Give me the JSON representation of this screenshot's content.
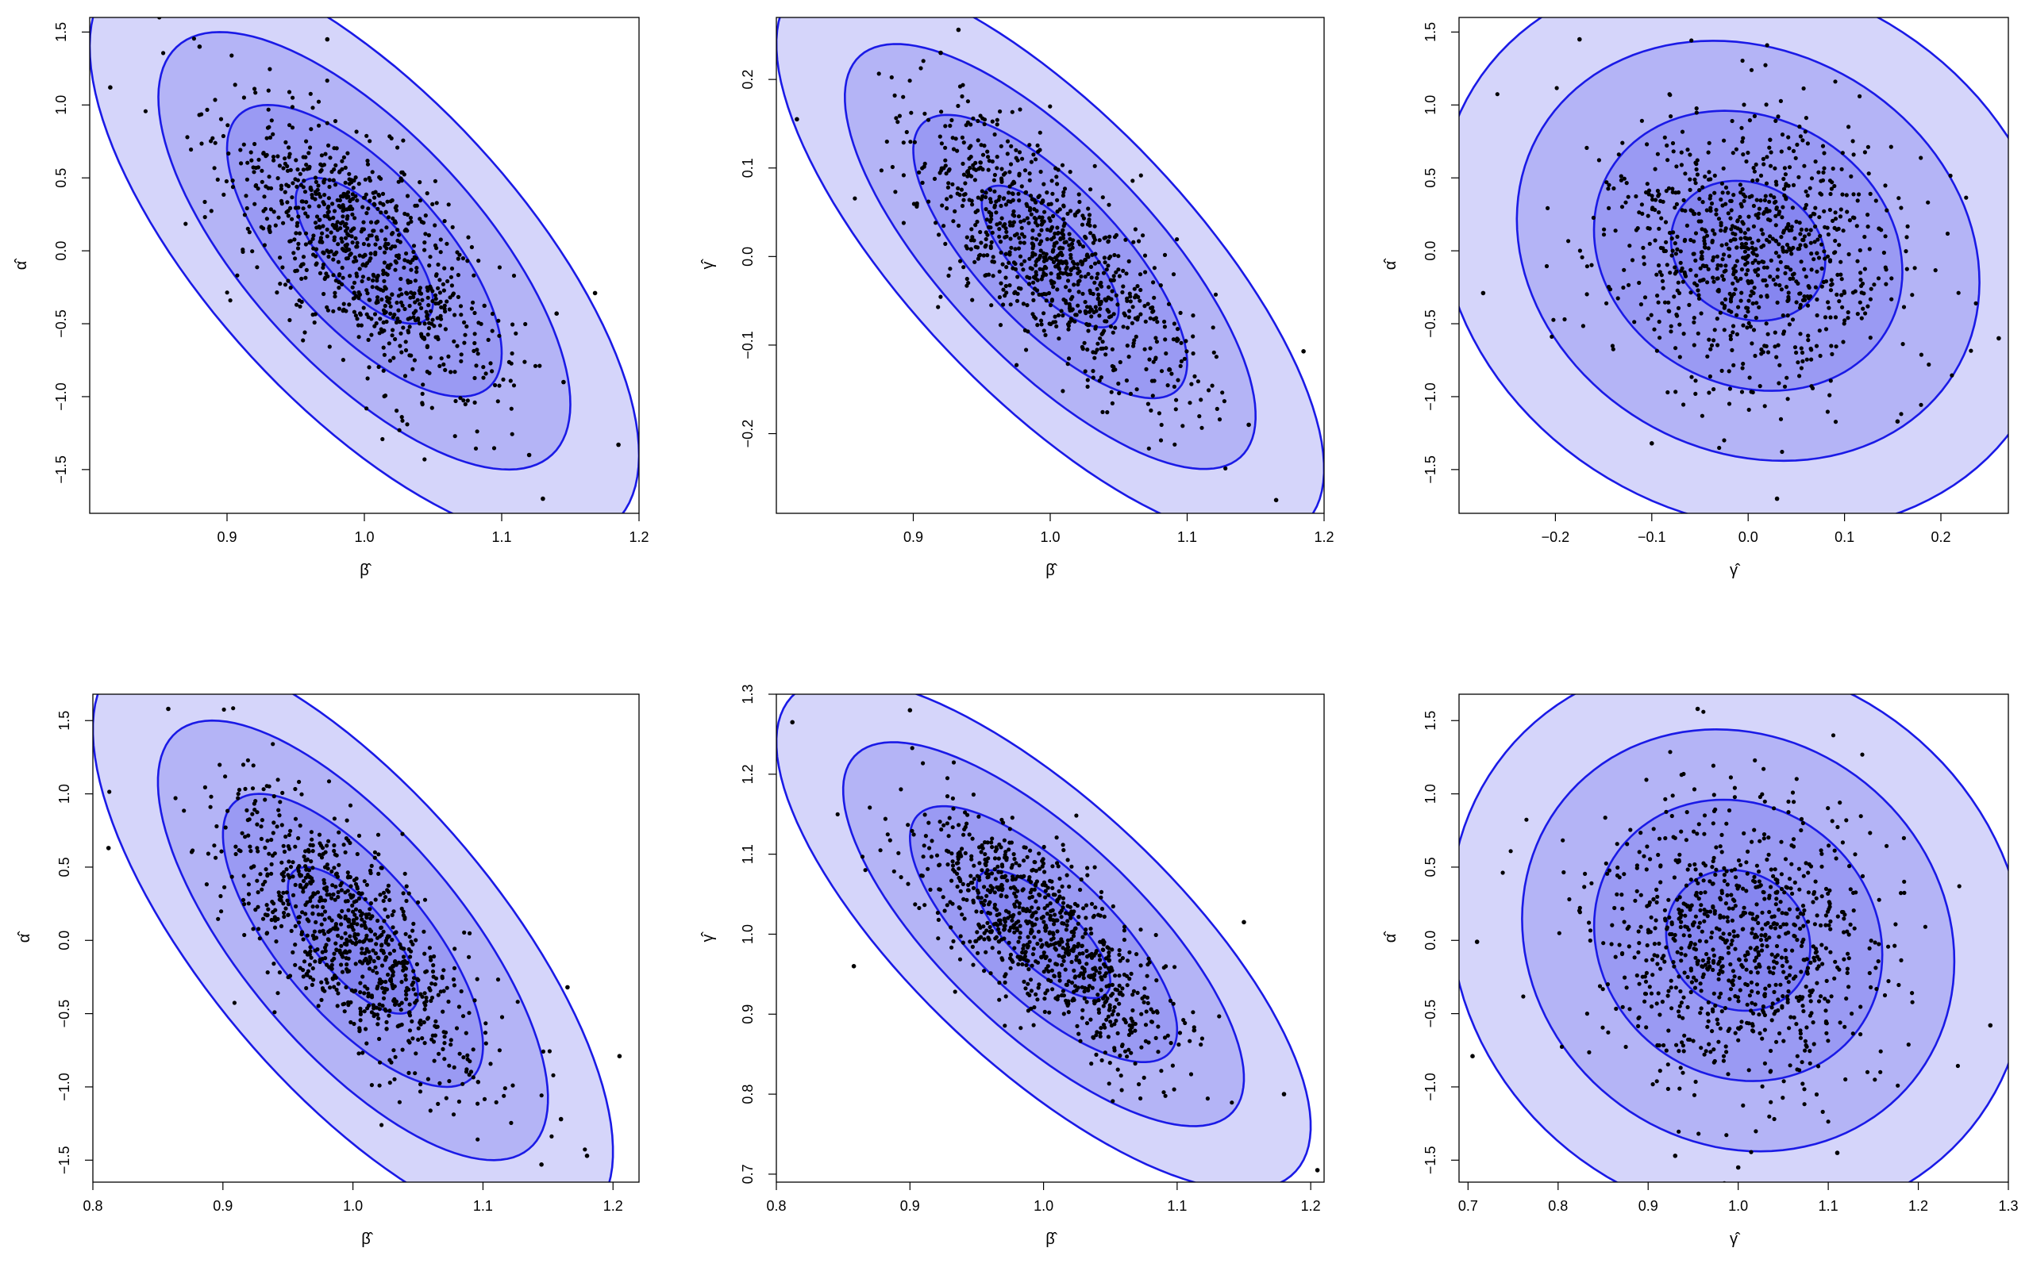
{
  "chart_data": [
    {
      "type": "scatter",
      "xlabel": "β̂",
      "ylabel": "α̂",
      "xlim": [
        0.8,
        1.2
      ],
      "ylim": [
        -1.8,
        1.6
      ],
      "xticks": [
        0.9,
        1.0,
        1.1,
        1.2
      ],
      "xtick_labels": [
        "0.9",
        "1.0",
        "1.1",
        "1.2"
      ],
      "yticks": [
        -1.5,
        -1.0,
        -0.5,
        0.0,
        0.5,
        1.0,
        1.5
      ],
      "ytick_labels": [
        "−1.5",
        "−1.0",
        "−0.5",
        "0.0",
        "0.5",
        "1.0",
        "1.5"
      ],
      "center": [
        1.0,
        0.0
      ],
      "sd": [
        0.05,
        0.5
      ],
      "correlation": -0.7,
      "contour_levels": [
        1,
        2,
        3,
        4
      ],
      "n_points": 900,
      "highlight_points": [
        [
          0.815,
          1.12
        ],
        [
          0.88,
          1.4
        ],
        [
          0.973,
          1.45
        ],
        [
          1.13,
          -1.7
        ],
        [
          1.185,
          -1.33
        ],
        [
          1.12,
          -1.4
        ],
        [
          1.168,
          -0.29
        ],
        [
          1.14,
          -0.43
        ],
        [
          1.145,
          -0.9
        ]
      ],
      "colors": {
        "fill": "#4040e8",
        "line": "#1a1ae6",
        "points": "#000000"
      }
    },
    {
      "type": "scatter",
      "xlabel": "β̂",
      "ylabel": "γ̂",
      "xlim": [
        0.8,
        1.2
      ],
      "ylim": [
        -0.29,
        0.27
      ],
      "xticks": [
        0.9,
        1.0,
        1.1,
        1.2
      ],
      "xtick_labels": [
        "0.9",
        "1.0",
        "1.1",
        "1.2"
      ],
      "yticks": [
        -0.2,
        -0.1,
        0.0,
        0.1,
        0.2
      ],
      "ytick_labels": [
        "−0.2",
        "−0.1",
        "0.0",
        "0.1",
        "0.2"
      ],
      "center": [
        1.0,
        0.0
      ],
      "sd": [
        0.05,
        0.08
      ],
      "correlation": -0.75,
      "contour_levels": [
        1,
        2,
        3,
        4
      ],
      "n_points": 900,
      "highlight_points": [
        [
          0.815,
          0.155
        ],
        [
          0.933,
          0.256
        ],
        [
          1.165,
          -0.275
        ],
        [
          1.185,
          -0.107
        ],
        [
          1.145,
          -0.19
        ],
        [
          0.92,
          0.23
        ]
      ],
      "colors": {
        "fill": "#4040e8",
        "line": "#1a1ae6",
        "points": "#000000"
      }
    },
    {
      "type": "scatter",
      "xlabel": "γ̂",
      "ylabel": "α̂",
      "xlim": [
        -0.3,
        0.27
      ],
      "ylim": [
        -1.8,
        1.6
      ],
      "xticks": [
        -0.2,
        -0.1,
        0.0,
        0.1,
        0.2
      ],
      "xtick_labels": [
        "−0.2",
        "−0.1",
        "0.0",
        "0.1",
        "0.2"
      ],
      "yticks": [
        -1.5,
        -1.0,
        -0.5,
        0.0,
        0.5,
        1.0,
        1.5
      ],
      "ytick_labels": [
        "−1.5",
        "−1.0",
        "−0.5",
        "0.0",
        "0.5",
        "1.0",
        "1.5"
      ],
      "center": [
        0.0,
        0.0
      ],
      "sd": [
        0.08,
        0.48
      ],
      "correlation": -0.15,
      "contour_levels": [
        1,
        2,
        3,
        4
      ],
      "n_points": 900,
      "highlight_points": [
        [
          -0.175,
          1.45
        ],
        [
          -0.275,
          -0.29
        ],
        [
          0.03,
          -1.7
        ],
        [
          0.26,
          -0.6
        ],
        [
          -0.1,
          -1.32
        ],
        [
          0.155,
          -1.17
        ]
      ],
      "colors": {
        "fill": "#4040e8",
        "line": "#1a1ae6",
        "points": "#000000"
      }
    },
    {
      "type": "scatter",
      "xlabel": "β̂",
      "ylabel": "α̂",
      "xlim": [
        0.8,
        1.22
      ],
      "ylim": [
        -1.65,
        1.68
      ],
      "xticks": [
        0.8,
        0.9,
        1.0,
        1.1,
        1.2
      ],
      "xtick_labels": [
        "0.8",
        "0.9",
        "1.0",
        "1.1",
        "1.2"
      ],
      "yticks": [
        -1.5,
        -1.0,
        -0.5,
        0.0,
        0.5,
        1.0,
        1.5
      ],
      "ytick_labels": [
        "−1.5",
        "−1.0",
        "−0.5",
        "0.0",
        "0.5",
        "1.0",
        "1.5"
      ],
      "center": [
        1.0,
        0.0
      ],
      "sd": [
        0.05,
        0.5
      ],
      "correlation": -0.72,
      "contour_levels": [
        1,
        2,
        3,
        4
      ],
      "n_points": 900,
      "highlight_points": [
        [
          0.858,
          1.58
        ],
        [
          0.812,
          0.63
        ],
        [
          1.205,
          -0.79
        ],
        [
          1.18,
          -1.47
        ],
        [
          1.16,
          -1.22
        ],
        [
          1.145,
          -1.53
        ],
        [
          1.165,
          -0.32
        ]
      ],
      "colors": {
        "fill": "#4040e8",
        "line": "#1a1ae6",
        "points": "#000000"
      }
    },
    {
      "type": "scatter",
      "xlabel": "β̂",
      "ylabel": "γ̂",
      "xlim": [
        0.8,
        1.21
      ],
      "ylim": [
        0.69,
        1.3
      ],
      "xticks": [
        0.8,
        0.9,
        1.0,
        1.1,
        1.2
      ],
      "xtick_labels": [
        "0.8",
        "0.9",
        "1.0",
        "1.1",
        "1.2"
      ],
      "yticks": [
        0.7,
        0.8,
        0.9,
        1.0,
        1.1,
        1.2,
        1.3
      ],
      "ytick_labels": [
        "0.7",
        "0.8",
        "0.9",
        "1.0",
        "1.1",
        "1.2",
        "1.3"
      ],
      "center": [
        1.0,
        1.0
      ],
      "sd": [
        0.05,
        0.08
      ],
      "correlation": -0.75,
      "contour_levels": [
        1,
        2,
        3,
        4
      ],
      "n_points": 900,
      "highlight_points": [
        [
          0.812,
          1.265
        ],
        [
          0.9,
          1.28
        ],
        [
          1.205,
          0.705
        ],
        [
          1.18,
          0.8
        ],
        [
          1.15,
          1.015
        ],
        [
          0.858,
          0.96
        ]
      ],
      "colors": {
        "fill": "#4040e8",
        "line": "#1a1ae6",
        "points": "#000000"
      }
    },
    {
      "type": "scatter",
      "xlabel": "γ̂",
      "ylabel": "α̂",
      "xlim": [
        0.69,
        1.3
      ],
      "ylim": [
        -1.65,
        1.68
      ],
      "xticks": [
        0.7,
        0.8,
        0.9,
        1.0,
        1.1,
        1.2,
        1.3
      ],
      "xtick_labels": [
        "0.7",
        "0.8",
        "0.9",
        "1.0",
        "1.1",
        "1.2",
        "1.3"
      ],
      "yticks": [
        -1.5,
        -1.0,
        -0.5,
        0.0,
        0.5,
        1.0,
        1.5
      ],
      "ytick_labels": [
        "−1.5",
        "−1.0",
        "−0.5",
        "0.0",
        "0.5",
        "1.0",
        "1.5"
      ],
      "center": [
        1.0,
        0.0
      ],
      "sd": [
        0.08,
        0.48
      ],
      "correlation": -0.1,
      "contour_levels": [
        1,
        2,
        3,
        4
      ],
      "n_points": 900,
      "highlight_points": [
        [
          0.955,
          1.58
        ],
        [
          0.705,
          -0.79
        ],
        [
          1.28,
          -0.58
        ],
        [
          1.11,
          -1.45
        ],
        [
          0.93,
          -1.47
        ],
        [
          1.0,
          -1.55
        ],
        [
          0.71,
          -0.01
        ]
      ],
      "colors": {
        "fill": "#4040e8",
        "line": "#1a1ae6",
        "points": "#000000"
      }
    }
  ]
}
